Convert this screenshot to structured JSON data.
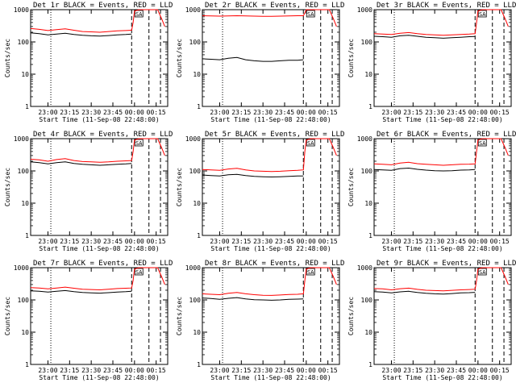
{
  "shared": {
    "ylabel": "Counts/sec",
    "xlabel": "Start Time (11-Sep-08 22:48:00)",
    "y_ticks": [
      {
        "value": 1,
        "label": "1"
      },
      {
        "value": 10,
        "label": "10"
      },
      {
        "value": 100,
        "label": "100"
      },
      {
        "value": 1000,
        "label": "1000"
      }
    ],
    "x_ticks": [
      {
        "value": 12,
        "label": "23:00"
      },
      {
        "value": 27,
        "label": "23:15"
      },
      {
        "value": 42,
        "label": "23:30"
      },
      {
        "value": 57,
        "label": "23:45"
      },
      {
        "value": 72,
        "label": "00:00"
      },
      {
        "value": 87,
        "label": "00:15"
      }
    ],
    "xlim": [
      0,
      95
    ],
    "ylim": [
      1,
      1000
    ],
    "marker_label": "SA",
    "series_colors": {
      "events": "#000000",
      "lld": "#ff0000"
    }
  },
  "chart_data": [
    {
      "type": "line",
      "title": "Det 1r BLACK = Events, RED = LLD",
      "yscale": "log",
      "series": [
        {
          "name": "Events",
          "color": "#000000",
          "x": [
            0,
            6,
            12,
            18,
            24,
            30,
            36,
            42,
            48,
            54,
            60,
            66,
            70
          ],
          "y": [
            190,
            180,
            165,
            175,
            185,
            170,
            160,
            155,
            152,
            158,
            165,
            170,
            175
          ]
        },
        {
          "name": "LLD",
          "color": "#ff0000",
          "x": [
            0,
            6,
            12,
            18,
            24,
            30,
            36,
            42,
            48,
            54,
            60,
            66,
            70,
            71,
            72,
            75,
            76,
            80,
            85,
            86,
            88,
            91,
            93
          ],
          "y": [
            260,
            245,
            225,
            240,
            255,
            230,
            210,
            205,
            200,
            210,
            220,
            225,
            230,
            400,
            900,
            1000,
            1000,
            1000,
            1000,
            1000,
            1000,
            500,
            300
          ]
        }
      ],
      "dashed_x": [
        14,
        70,
        82,
        90
      ],
      "dotted_x": [
        14
      ]
    },
    {
      "type": "line",
      "title": "Det 2r BLACK = Events, RED = LLD",
      "yscale": "log",
      "series": [
        {
          "name": "Events",
          "color": "#000000",
          "x": [
            0,
            6,
            12,
            18,
            24,
            30,
            36,
            42,
            48,
            54,
            60,
            66,
            70
          ],
          "y": [
            30,
            29,
            28,
            31,
            33,
            28,
            26,
            25,
            25,
            26,
            27,
            27,
            28
          ]
        },
        {
          "name": "LLD",
          "color": "#ff0000",
          "x": [
            0,
            6,
            12,
            18,
            24,
            30,
            36,
            42,
            48,
            54,
            60,
            66,
            70,
            71,
            72,
            75,
            76,
            80,
            85,
            86,
            88,
            91,
            93
          ],
          "y": [
            650,
            640,
            630,
            640,
            650,
            640,
            630,
            625,
            625,
            630,
            640,
            650,
            650,
            800,
            1000,
            1000,
            1000,
            1000,
            1000,
            1000,
            1000,
            500,
            300
          ]
        }
      ],
      "dashed_x": [
        14,
        70,
        82,
        90
      ],
      "dotted_x": [
        14
      ]
    },
    {
      "type": "line",
      "title": "Det 3r BLACK = Events, RED = LLD",
      "yscale": "log",
      "series": [
        {
          "name": "Events",
          "color": "#000000",
          "x": [
            0,
            6,
            12,
            18,
            24,
            30,
            36,
            42,
            48,
            54,
            60,
            66,
            70
          ],
          "y": [
            150,
            145,
            140,
            155,
            160,
            150,
            140,
            135,
            130,
            135,
            140,
            145,
            148
          ]
        },
        {
          "name": "LLD",
          "color": "#ff0000",
          "x": [
            0,
            6,
            12,
            18,
            24,
            30,
            36,
            42,
            48,
            54,
            60,
            66,
            70,
            71,
            72,
            75,
            76,
            80,
            85,
            86,
            88,
            91,
            93
          ],
          "y": [
            180,
            175,
            170,
            185,
            195,
            180,
            170,
            165,
            160,
            165,
            170,
            175,
            180,
            400,
            900,
            1000,
            1000,
            1000,
            1000,
            1000,
            1000,
            500,
            300
          ]
        }
      ],
      "dashed_x": [
        14,
        70,
        82,
        90
      ],
      "dotted_x": [
        14
      ]
    },
    {
      "type": "line",
      "title": "Det 4r BLACK = Events, RED = LLD",
      "yscale": "log",
      "series": [
        {
          "name": "Events",
          "color": "#000000",
          "x": [
            0,
            6,
            12,
            18,
            24,
            30,
            36,
            42,
            48,
            54,
            60,
            66,
            70
          ],
          "y": [
            190,
            180,
            165,
            180,
            190,
            170,
            160,
            155,
            150,
            155,
            160,
            165,
            170
          ]
        },
        {
          "name": "LLD",
          "color": "#ff0000",
          "x": [
            0,
            6,
            12,
            18,
            24,
            30,
            36,
            42,
            48,
            54,
            60,
            66,
            70,
            71,
            72,
            75,
            76,
            80,
            85,
            86,
            88,
            91,
            93
          ],
          "y": [
            230,
            220,
            200,
            225,
            240,
            210,
            195,
            190,
            185,
            190,
            200,
            205,
            210,
            400,
            900,
            1000,
            1000,
            1000,
            1000,
            1000,
            1000,
            500,
            300
          ]
        }
      ],
      "dashed_x": [
        14,
        70,
        82,
        90
      ],
      "dotted_x": [
        14
      ]
    },
    {
      "type": "line",
      "title": "Det 5r BLACK = Events, RED = LLD",
      "yscale": "log",
      "series": [
        {
          "name": "Events",
          "color": "#000000",
          "x": [
            0,
            6,
            12,
            18,
            24,
            30,
            36,
            42,
            48,
            54,
            60,
            66,
            70
          ],
          "y": [
            75,
            72,
            70,
            76,
            78,
            72,
            68,
            66,
            65,
            66,
            68,
            70,
            70
          ]
        },
        {
          "name": "LLD",
          "color": "#ff0000",
          "x": [
            0,
            6,
            12,
            18,
            24,
            30,
            36,
            42,
            48,
            54,
            60,
            66,
            70,
            71,
            72,
            75,
            76,
            80,
            85,
            86,
            88,
            91,
            93
          ],
          "y": [
            110,
            108,
            105,
            115,
            120,
            108,
            100,
            98,
            96,
            98,
            102,
            105,
            108,
            400,
            900,
            1000,
            1000,
            1000,
            1000,
            1000,
            1000,
            500,
            300
          ]
        }
      ],
      "dashed_x": [
        14,
        70,
        82,
        90
      ],
      "dotted_x": [
        14
      ]
    },
    {
      "type": "line",
      "title": "Det 6r BLACK = Events, RED = LLD",
      "yscale": "log",
      "series": [
        {
          "name": "Events",
          "color": "#000000",
          "x": [
            0,
            6,
            12,
            18,
            24,
            30,
            36,
            42,
            48,
            54,
            60,
            66,
            70
          ],
          "y": [
            110,
            108,
            105,
            118,
            122,
            112,
            106,
            102,
            100,
            102,
            106,
            108,
            110
          ]
        },
        {
          "name": "LLD",
          "color": "#ff0000",
          "x": [
            0,
            6,
            12,
            18,
            24,
            30,
            36,
            42,
            48,
            54,
            60,
            66,
            70,
            71,
            72,
            75,
            76,
            80,
            85,
            86,
            88,
            91,
            93
          ],
          "y": [
            165,
            160,
            155,
            175,
            185,
            168,
            160,
            155,
            150,
            155,
            160,
            162,
            165,
            400,
            900,
            1000,
            1000,
            1000,
            1000,
            1000,
            1000,
            500,
            300
          ]
        }
      ],
      "dashed_x": [
        14,
        70,
        82,
        90
      ],
      "dotted_x": [
        14
      ]
    },
    {
      "type": "line",
      "title": "Det 7r BLACK = Events, RED = LLD",
      "yscale": "log",
      "series": [
        {
          "name": "Events",
          "color": "#000000",
          "x": [
            0,
            6,
            12,
            18,
            24,
            30,
            36,
            42,
            48,
            54,
            60,
            66,
            70
          ],
          "y": [
            190,
            185,
            175,
            185,
            195,
            180,
            170,
            165,
            162,
            168,
            175,
            180,
            185
          ]
        },
        {
          "name": "LLD",
          "color": "#ff0000",
          "x": [
            0,
            6,
            12,
            18,
            24,
            30,
            36,
            42,
            48,
            54,
            60,
            66,
            70,
            71,
            72,
            75,
            76,
            80,
            85,
            86,
            88,
            91,
            93
          ],
          "y": [
            240,
            235,
            220,
            235,
            250,
            230,
            215,
            210,
            205,
            215,
            225,
            230,
            235,
            400,
            900,
            1000,
            1000,
            1000,
            1000,
            1000,
            1000,
            500,
            300
          ]
        }
      ],
      "dashed_x": [
        14,
        70,
        82,
        90
      ],
      "dotted_x": [
        14
      ]
    },
    {
      "type": "line",
      "title": "Det 8r BLACK = Events, RED = LLD",
      "yscale": "log",
      "series": [
        {
          "name": "Events",
          "color": "#000000",
          "x": [
            0,
            6,
            12,
            18,
            24,
            30,
            36,
            42,
            48,
            54,
            60,
            66,
            70
          ],
          "y": [
            115,
            110,
            105,
            112,
            118,
            108,
            102,
            100,
            98,
            100,
            104,
            106,
            108
          ]
        },
        {
          "name": "LLD",
          "color": "#ff0000",
          "x": [
            0,
            6,
            12,
            18,
            24,
            30,
            36,
            42,
            48,
            54,
            60,
            66,
            70,
            71,
            72,
            75,
            76,
            80,
            85,
            86,
            88,
            91,
            93
          ],
          "y": [
            155,
            150,
            145,
            160,
            170,
            155,
            145,
            140,
            138,
            142,
            148,
            150,
            155,
            400,
            900,
            1000,
            1000,
            1000,
            1000,
            1000,
            1000,
            500,
            300
          ]
        }
      ],
      "dashed_x": [
        14,
        70,
        82,
        90
      ],
      "dotted_x": [
        14
      ]
    },
    {
      "type": "line",
      "title": "Det 9r BLACK = Events, RED = LLD",
      "yscale": "log",
      "series": [
        {
          "name": "Events",
          "color": "#000000",
          "x": [
            0,
            6,
            12,
            18,
            24,
            30,
            36,
            42,
            48,
            54,
            60,
            66,
            70
          ],
          "y": [
            180,
            175,
            165,
            178,
            185,
            170,
            160,
            155,
            152,
            158,
            165,
            168,
            172
          ]
        },
        {
          "name": "LLD",
          "color": "#ff0000",
          "x": [
            0,
            6,
            12,
            18,
            24,
            30,
            36,
            42,
            48,
            54,
            60,
            66,
            70,
            71,
            72,
            75,
            76,
            80,
            85,
            86,
            88,
            91,
            93
          ],
          "y": [
            225,
            220,
            205,
            222,
            232,
            212,
            200,
            195,
            190,
            198,
            205,
            210,
            215,
            400,
            900,
            1000,
            1000,
            1000,
            1000,
            1000,
            1000,
            500,
            300
          ]
        }
      ],
      "dashed_x": [
        14,
        70,
        82,
        90
      ],
      "dotted_x": [
        14
      ]
    }
  ]
}
